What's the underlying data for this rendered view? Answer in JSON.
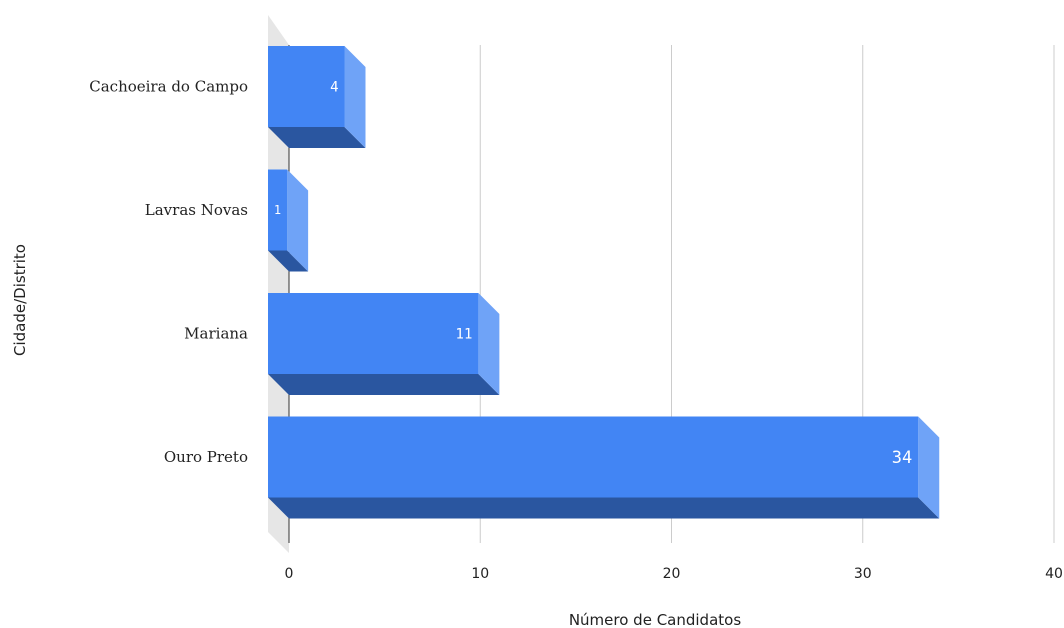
{
  "chart_data": {
    "type": "bar",
    "orientation": "horizontal",
    "style": "3d",
    "categories": [
      "Cachoeira do Campo",
      "Lavras Novas",
      "Mariana",
      "Ouro Preto"
    ],
    "values": [
      4,
      1,
      11,
      34
    ],
    "data_labels": [
      "4",
      "1",
      "11",
      "34"
    ],
    "xlabel": "Número de Candidatos",
    "ylabel": "Cidade/Distrito",
    "xlim": [
      0,
      40
    ],
    "x_ticks": [
      "0",
      "10",
      "20",
      "30",
      "40"
    ],
    "grid": true,
    "legend": "none",
    "colors": {
      "bar_front": "#4285f4",
      "bar_side": "#6fa3f7",
      "bar_bottom": "#2a56a0",
      "grid": "#cccccc",
      "back_wall": "#e6e6e6"
    }
  }
}
